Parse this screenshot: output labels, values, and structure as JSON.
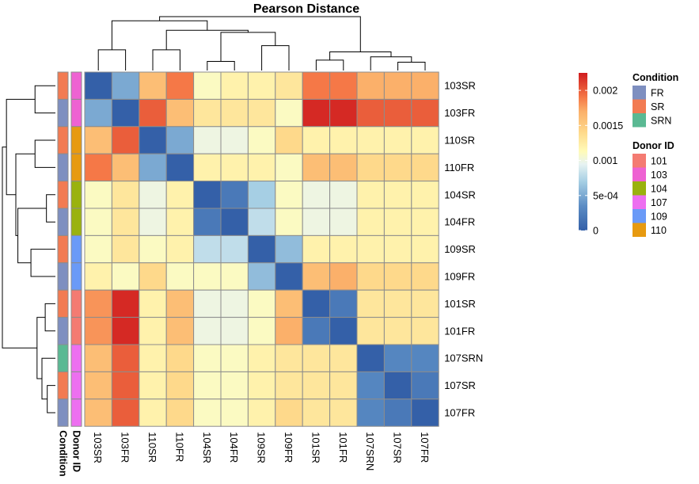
{
  "chart_data": {
    "type": "heatmap",
    "title": "Pearson Distance",
    "labels": [
      "103SR",
      "103FR",
      "110SR",
      "110FR",
      "104SR",
      "104FR",
      "109SR",
      "109FR",
      "101SR",
      "101FR",
      "107SRN",
      "107SR",
      "107FR"
    ],
    "values": [
      [
        0.0,
        0.0005,
        0.0016,
        0.0019,
        0.0011,
        0.0012,
        0.0012,
        0.0013,
        0.0019,
        0.0019,
        0.0017,
        0.0017,
        0.0017
      ],
      [
        0.0005,
        0.0,
        0.002,
        0.0016,
        0.0013,
        0.0013,
        0.0013,
        0.0011,
        0.0022,
        0.0022,
        0.002,
        0.002,
        0.002
      ],
      [
        0.0016,
        0.002,
        0.0,
        0.0005,
        0.001,
        0.001,
        0.0011,
        0.0014,
        0.0012,
        0.0012,
        0.0012,
        0.0012,
        0.0012
      ],
      [
        0.0019,
        0.0016,
        0.0005,
        0.0,
        0.0012,
        0.0012,
        0.0012,
        0.0011,
        0.0016,
        0.0016,
        0.0014,
        0.0014,
        0.0014
      ],
      [
        0.0011,
        0.0013,
        0.001,
        0.0012,
        0.0,
        0.0002,
        0.0007,
        0.0011,
        0.001,
        0.001,
        0.0012,
        0.0012,
        0.0012
      ],
      [
        0.0011,
        0.0013,
        0.001,
        0.0012,
        0.0002,
        0.0,
        0.0008,
        0.0011,
        0.001,
        0.001,
        0.0012,
        0.0012,
        0.0012
      ],
      [
        0.0011,
        0.0013,
        0.0011,
        0.0012,
        0.0008,
        0.0008,
        0.0,
        0.0006,
        0.0012,
        0.0012,
        0.0012,
        0.0012,
        0.0012
      ],
      [
        0.0012,
        0.0011,
        0.0014,
        0.0011,
        0.0011,
        0.0011,
        0.0006,
        0.0,
        0.0016,
        0.0017,
        0.0014,
        0.0014,
        0.0014
      ],
      [
        0.0018,
        0.0022,
        0.0012,
        0.0016,
        0.001,
        0.001,
        0.0011,
        0.0016,
        0.0,
        0.0002,
        0.0013,
        0.0013,
        0.0013
      ],
      [
        0.0018,
        0.0022,
        0.0012,
        0.0016,
        0.001,
        0.001,
        0.0011,
        0.0017,
        0.0002,
        0.0,
        0.0013,
        0.0013,
        0.0013
      ],
      [
        0.0016,
        0.002,
        0.0012,
        0.0014,
        0.0011,
        0.0011,
        0.0012,
        0.0013,
        0.0013,
        0.0013,
        0.0,
        0.0003,
        0.0003
      ],
      [
        0.0016,
        0.002,
        0.0012,
        0.0014,
        0.0011,
        0.0011,
        0.0012,
        0.0013,
        0.0013,
        0.0013,
        0.0003,
        0.0,
        0.0002
      ],
      [
        0.0016,
        0.002,
        0.0012,
        0.0014,
        0.0011,
        0.0011,
        0.0012,
        0.0014,
        0.0013,
        0.0013,
        0.0003,
        0.0002,
        0.0
      ]
    ],
    "color_scale": {
      "min": 0,
      "max": 0.00225,
      "stops": [
        {
          "value": 0,
          "color": "#3460a8"
        },
        {
          "value": 0.00035,
          "color": "#5b8cc4"
        },
        {
          "value": 0.0007,
          "color": "#a6cfe4"
        },
        {
          "value": 0.00095,
          "color": "#e7f3f2"
        },
        {
          "value": 0.00113,
          "color": "#fffbb8"
        },
        {
          "value": 0.0014,
          "color": "#fed98b"
        },
        {
          "value": 0.0017,
          "color": "#fbb06a"
        },
        {
          "value": 0.0019,
          "color": "#f57847"
        },
        {
          "value": 0.00225,
          "color": "#d01c1e"
        }
      ],
      "ticks": [
        {
          "value": 0.002,
          "label": "0.002"
        },
        {
          "value": 0.0015,
          "label": "0.0015"
        },
        {
          "value": 0.001,
          "label": "0.001"
        },
        {
          "value": 0.0005,
          "label": "5e-04"
        },
        {
          "value": 0,
          "label": "0"
        }
      ]
    },
    "annotations": {
      "condition": {
        "title": "Condition",
        "values": [
          "SR",
          "FR",
          "SR",
          "FR",
          "SR",
          "FR",
          "SR",
          "FR",
          "SR",
          "FR",
          "SRN",
          "SR",
          "FR"
        ],
        "legend": [
          {
            "key": "FR",
            "color": "#7e8fc0"
          },
          {
            "key": "SR",
            "color": "#f27b52"
          },
          {
            "key": "SRN",
            "color": "#5ab993"
          }
        ]
      },
      "donor": {
        "title": "Donor ID",
        "values": [
          "103",
          "103",
          "110",
          "110",
          "104",
          "104",
          "109",
          "109",
          "101",
          "101",
          "107",
          "107",
          "107"
        ],
        "legend": [
          {
            "key": "101",
            "color": "#f47b72"
          },
          {
            "key": "103",
            "color": "#ee62d2"
          },
          {
            "key": "104",
            "color": "#9ab20e"
          },
          {
            "key": "107",
            "color": "#ed6ff0"
          },
          {
            "key": "109",
            "color": "#6a9af7"
          },
          {
            "key": "110",
            "color": "#e79a10"
          }
        ]
      }
    },
    "dendrogram": {
      "merges": [
        [
          0,
          1,
          0.0005
        ],
        [
          2,
          3,
          0.0005
        ],
        [
          4,
          5,
          0.00022
        ],
        [
          6,
          7,
          0.0006
        ],
        [
          8,
          9,
          0.00025
        ],
        [
          11,
          12,
          0.0002
        ],
        [
          10,
          18,
          0.00033
        ],
        [
          17,
          19,
          0.00045
        ],
        [
          15,
          16,
          0.00092
        ],
        [
          14,
          21,
          0.00097
        ],
        [
          13,
          22,
          0.0012
        ],
        [
          20,
          23,
          0.0013
        ]
      ],
      "max_height": 0.0013
    },
    "grid": false,
    "legend_placement": "right"
  }
}
